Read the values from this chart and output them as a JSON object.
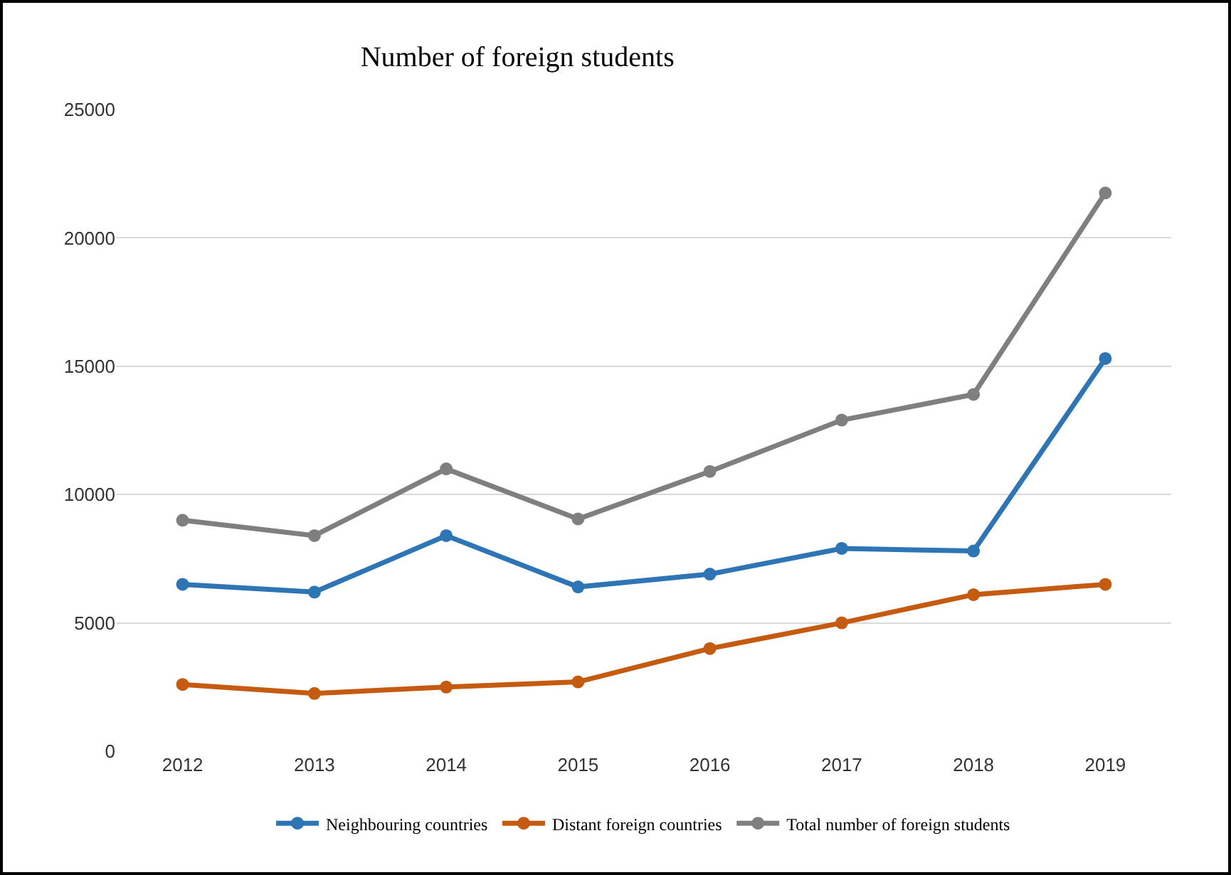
{
  "chart_data": {
    "type": "line",
    "title": "Number of foreign students",
    "categories": [
      "2012",
      "2013",
      "2014",
      "2015",
      "2016",
      "2017",
      "2018",
      "2019"
    ],
    "series": [
      {
        "name": "Neighbouring countries",
        "color": "#2e75b6",
        "values": [
          6500,
          6200,
          8400,
          6400,
          6900,
          7900,
          7800,
          15300
        ]
      },
      {
        "name": "Distant foreign countries",
        "color": "#c55a11",
        "values": [
          2600,
          2250,
          2500,
          2700,
          4000,
          5000,
          6100,
          6500
        ]
      },
      {
        "name": "Total number of foreign students",
        "color": "#7f7f7f",
        "values": [
          9000,
          8400,
          11000,
          9050,
          10900,
          12900,
          13900,
          21750
        ]
      }
    ],
    "ylim": [
      0,
      25000
    ],
    "yticks": [
      0,
      5000,
      10000,
      15000,
      20000,
      25000
    ],
    "grid": "y",
    "legend": "bottom",
    "marker": "circle",
    "line_style": "solid"
  }
}
